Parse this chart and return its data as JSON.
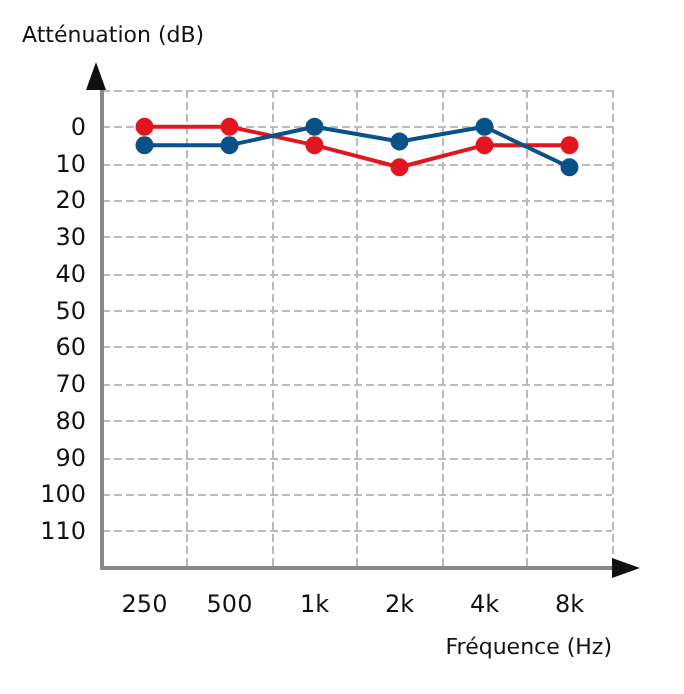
{
  "chart_data": {
    "type": "line",
    "xlabel": "Fréquence (Hz)",
    "ylabel": "Atténuation (dB)",
    "categories": [
      "250",
      "500",
      "1k",
      "2k",
      "4k",
      "8k"
    ],
    "series": [
      {
        "color": "#e3161f",
        "values": [
          0,
          0,
          5,
          11,
          5,
          5
        ]
      },
      {
        "color": "#0a5188",
        "values": [
          5,
          5,
          0,
          4,
          0,
          11
        ]
      }
    ],
    "ylim": [
      120,
      -10
    ],
    "yticks": [
      {
        "value": -10,
        "label": null
      },
      0,
      10,
      20,
      30,
      40,
      50,
      60,
      70,
      80,
      90,
      100,
      110,
      {
        "value": 120,
        "label": null
      }
    ],
    "grid": true,
    "marker": "circle",
    "line_style": "solid"
  }
}
